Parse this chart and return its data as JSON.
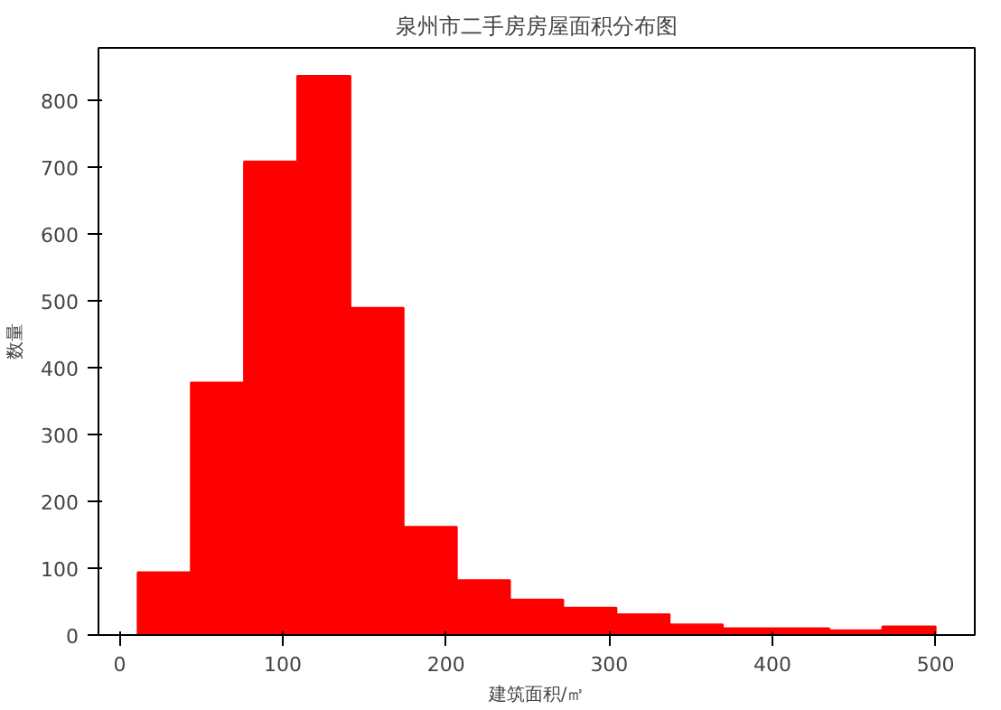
{
  "chart_data": {
    "type": "histogram",
    "title": "泉州市二手房房屋面积分布图",
    "xlabel": "建筑面积/㎡",
    "ylabel": "数量",
    "color": "#ff0000",
    "bins": [
      11,
      43.6,
      76.2,
      108.8,
      141.4,
      174,
      206.6,
      239.2,
      271.8,
      304.4,
      337,
      369.6,
      402.2,
      434.8,
      467.4,
      500
    ],
    "values": [
      94,
      378,
      709,
      837,
      490,
      162,
      82,
      53,
      41,
      31,
      16,
      10,
      10,
      7,
      13
    ],
    "xlim": [
      -13,
      524
    ],
    "ylim": [
      0,
      879
    ],
    "xticks": [
      0,
      100,
      200,
      300,
      400,
      500
    ],
    "yticks": [
      0,
      100,
      200,
      300,
      400,
      500,
      600,
      700,
      800
    ],
    "grid": false
  }
}
